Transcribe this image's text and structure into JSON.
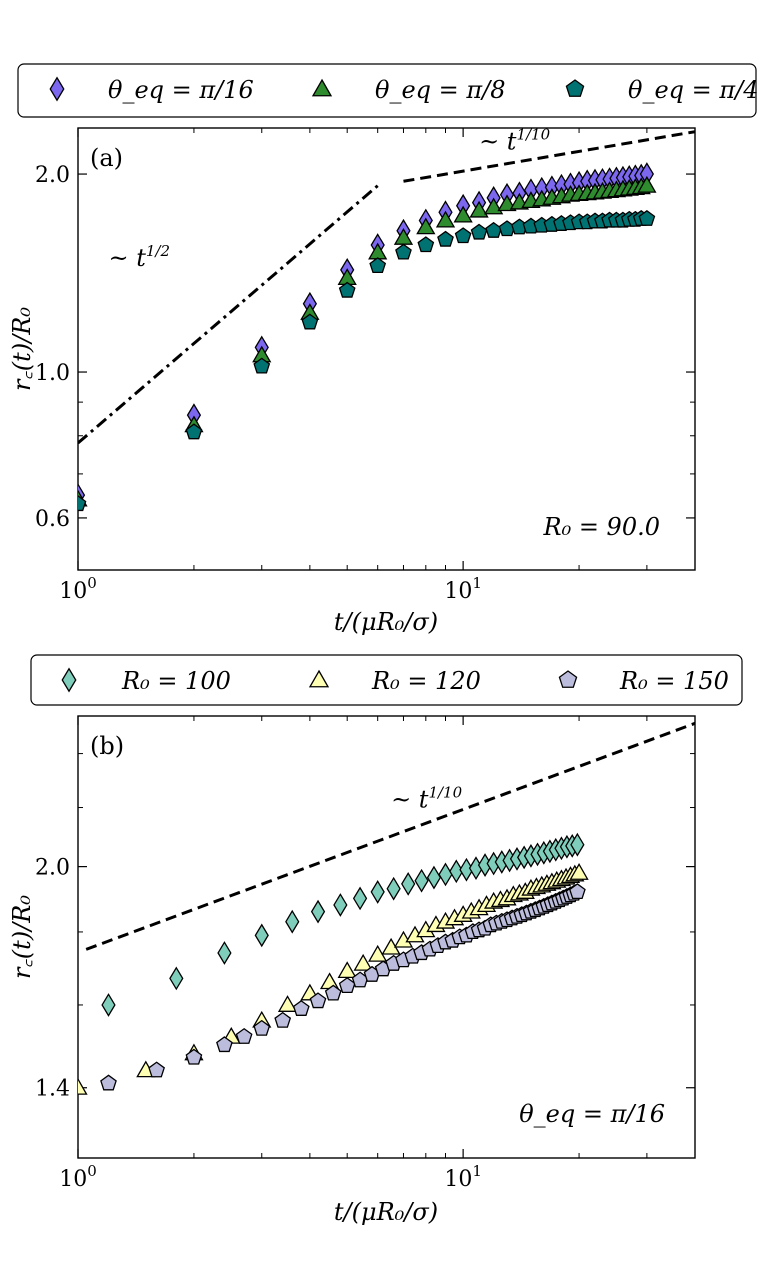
{
  "chart_data": [
    {
      "type": "scatter",
      "panel_label": "(a)",
      "xscale": "log",
      "yscale": "log",
      "xlim": [
        1,
        40
      ],
      "ylim": [
        0.5,
        2.35
      ],
      "xlabel": "t/(μR₀/σ)",
      "ylabel": "r꜀(t)/R₀",
      "x_ticks": [
        {
          "value": 1,
          "base": "10",
          "exp": "0"
        },
        {
          "value": 10,
          "base": "10",
          "exp": "1"
        }
      ],
      "y_ticks": [
        {
          "value": 0.6,
          "label": "0.6"
        },
        {
          "value": 1.0,
          "label": "1.0"
        },
        {
          "value": 2.0,
          "label": "2.0"
        }
      ],
      "y_minor_ticks": [
        0.7,
        0.8,
        0.9
      ],
      "legend": [
        {
          "series": 0,
          "text": "θ_eq = π/16"
        },
        {
          "series": 1,
          "text": "θ_eq = π/8"
        },
        {
          "series": 2,
          "text": "θ_eq = π/4"
        }
      ],
      "annotation": "R₀ = 90.0",
      "series": [
        {
          "name": "θ_eq = π/16",
          "marker": "diamond",
          "color": "#7b68ee",
          "x": [
            1,
            2,
            3,
            4,
            5,
            6,
            7,
            8,
            9,
            10,
            11,
            12,
            13,
            14,
            15,
            16,
            17,
            18,
            19,
            20,
            21,
            22,
            23,
            24,
            25,
            26,
            27,
            28,
            29,
            30
          ],
          "values": [
            0.65,
            0.86,
            1.09,
            1.27,
            1.43,
            1.56,
            1.64,
            1.7,
            1.75,
            1.79,
            1.81,
            1.84,
            1.86,
            1.87,
            1.89,
            1.9,
            1.91,
            1.92,
            1.93,
            1.94,
            1.95,
            1.955,
            1.96,
            1.965,
            1.97,
            1.975,
            1.98,
            1.985,
            1.99,
            2.0
          ]
        },
        {
          "name": "θ_eq = π/8",
          "marker": "triangle",
          "color": "#2e8b2e",
          "x": [
            1,
            2,
            3,
            4,
            5,
            6,
            7,
            8,
            9,
            10,
            11,
            12,
            13,
            14,
            15,
            16,
            17,
            18,
            19,
            20,
            21,
            22,
            23,
            24,
            25,
            26,
            27,
            28,
            29,
            30
          ],
          "values": [
            0.64,
            0.83,
            1.06,
            1.23,
            1.39,
            1.52,
            1.6,
            1.66,
            1.7,
            1.73,
            1.76,
            1.78,
            1.8,
            1.81,
            1.82,
            1.83,
            1.84,
            1.85,
            1.86,
            1.865,
            1.87,
            1.875,
            1.88,
            1.885,
            1.89,
            1.895,
            1.9,
            1.905,
            1.91,
            1.92
          ]
        },
        {
          "name": "θ_eq = π/4",
          "marker": "pentagon",
          "color": "#007272",
          "x": [
            1,
            2,
            3,
            4,
            5,
            6,
            7,
            8,
            9,
            10,
            11,
            12,
            13,
            14,
            15,
            16,
            17,
            18,
            19,
            20,
            21,
            22,
            23,
            24,
            25,
            26,
            27,
            28,
            29,
            30
          ],
          "values": [
            0.63,
            0.81,
            1.02,
            1.19,
            1.33,
            1.45,
            1.52,
            1.56,
            1.59,
            1.61,
            1.63,
            1.64,
            1.65,
            1.66,
            1.665,
            1.67,
            1.675,
            1.68,
            1.685,
            1.69,
            1.69,
            1.695,
            1.695,
            1.7,
            1.7,
            1.7,
            1.705,
            1.705,
            1.71,
            1.71
          ]
        }
      ],
      "guides": [
        {
          "style": "dash-dot",
          "x": [
            1,
            6
          ],
          "y": [
            0.78,
            1.92
          ],
          "label": "~ t^{1/2}",
          "label_base": "~ t",
          "label_exp": "1/2",
          "label_pos": [
            1.2,
            1.45
          ]
        },
        {
          "style": "dashed",
          "x": [
            7,
            40
          ],
          "y": [
            1.95,
            2.32
          ],
          "label": "~ t^{1/10}",
          "label_base": "~ t",
          "label_exp": "1/10",
          "label_pos": [
            11,
            2.18
          ]
        }
      ]
    },
    {
      "type": "scatter",
      "panel_label": "(b)",
      "xscale": "log",
      "yscale": "log",
      "xlim": [
        1,
        40
      ],
      "ylim": [
        1.25,
        2.55
      ],
      "xlabel": "t/(μR₀/σ)",
      "ylabel": "r꜀(t)/R₀",
      "x_ticks": [
        {
          "value": 1,
          "base": "10",
          "exp": "0"
        },
        {
          "value": 10,
          "base": "10",
          "exp": "1"
        }
      ],
      "y_ticks": [
        {
          "value": 1.4,
          "label": "1.4"
        },
        {
          "value": 2.0,
          "label": "2.0"
        }
      ],
      "y_minor_ticks": [
        1.6,
        1.8,
        2.2,
        2.4
      ],
      "legend": [
        {
          "series": 0,
          "text": "R₀ = 100"
        },
        {
          "series": 1,
          "text": "R₀ = 120"
        },
        {
          "series": 2,
          "text": "R₀ = 150"
        }
      ],
      "annotation": "θ_eq = π/16",
      "series": [
        {
          "name": "R₀ = 100",
          "marker": "diamond",
          "color": "#7fcdbb",
          "x": [
            1.2,
            1.8,
            2.4,
            3.0,
            3.6,
            4.2,
            4.8,
            5.4,
            6.0,
            6.6,
            7.2,
            7.8,
            8.4,
            9.0,
            9.6,
            10.2,
            10.8,
            11.4,
            12.0,
            12.6,
            13.2,
            13.8,
            14.4,
            15.0,
            15.6,
            16.2,
            16.8,
            17.4,
            18.0,
            18.6,
            19.2,
            19.8
          ],
          "values": [
            1.6,
            1.67,
            1.74,
            1.79,
            1.83,
            1.86,
            1.88,
            1.9,
            1.92,
            1.93,
            1.945,
            1.955,
            1.965,
            1.975,
            1.985,
            1.99,
            1.995,
            2.005,
            2.01,
            2.015,
            2.02,
            2.025,
            2.03,
            2.035,
            2.04,
            2.045,
            2.05,
            2.055,
            2.06,
            2.065,
            2.068,
            2.072
          ]
        },
        {
          "name": "R₀ = 120",
          "marker": "triangle",
          "color": "#ffffb3",
          "x": [
            1.0,
            1.5,
            2.0,
            2.5,
            3.0,
            3.5,
            4.0,
            4.5,
            5.0,
            5.5,
            6.0,
            6.5,
            7.0,
            7.5,
            8.0,
            8.5,
            9.0,
            9.5,
            10.0,
            10.5,
            11.0,
            11.5,
            12.0,
            12.5,
            13.0,
            13.5,
            14.0,
            14.5,
            15.0,
            15.5,
            16.0,
            16.5,
            17.0,
            17.5,
            18.0,
            18.5,
            19.0,
            19.5,
            20.0
          ],
          "values": [
            1.4,
            1.44,
            1.48,
            1.52,
            1.56,
            1.6,
            1.63,
            1.66,
            1.69,
            1.71,
            1.735,
            1.755,
            1.775,
            1.79,
            1.805,
            1.82,
            1.83,
            1.84,
            1.85,
            1.86,
            1.87,
            1.88,
            1.89,
            1.895,
            1.9,
            1.91,
            1.915,
            1.92,
            1.93,
            1.935,
            1.94,
            1.945,
            1.95,
            1.955,
            1.96,
            1.965,
            1.97,
            1.975,
            1.98
          ]
        },
        {
          "name": "R₀ = 150",
          "marker": "pentagon",
          "color": "#bcbddc",
          "x": [
            1.2,
            1.6,
            2.0,
            2.4,
            2.7,
            3.0,
            3.4,
            3.8,
            4.2,
            4.6,
            5.0,
            5.4,
            5.8,
            6.2,
            6.6,
            7.0,
            7.4,
            7.8,
            8.2,
            8.6,
            9.0,
            9.4,
            9.8,
            10.2,
            10.6,
            11.0,
            11.4,
            11.8,
            12.2,
            12.6,
            13.0,
            13.4,
            13.8,
            14.2,
            14.6,
            15.0,
            15.4,
            15.8,
            16.2,
            16.6,
            17.0,
            17.4,
            17.8,
            18.2,
            18.6,
            19.0,
            19.4,
            19.8
          ],
          "values": [
            1.41,
            1.44,
            1.47,
            1.5,
            1.52,
            1.54,
            1.56,
            1.59,
            1.61,
            1.63,
            1.65,
            1.665,
            1.68,
            1.695,
            1.71,
            1.72,
            1.73,
            1.74,
            1.75,
            1.76,
            1.77,
            1.775,
            1.785,
            1.79,
            1.8,
            1.805,
            1.81,
            1.82,
            1.825,
            1.83,
            1.835,
            1.84,
            1.845,
            1.85,
            1.855,
            1.86,
            1.865,
            1.87,
            1.875,
            1.88,
            1.885,
            1.89,
            1.895,
            1.9,
            1.905,
            1.91,
            1.915,
            1.92
          ]
        }
      ],
      "guides": [
        {
          "style": "dashed",
          "x": [
            1.05,
            40
          ],
          "y": [
            1.75,
            2.52
          ],
          "label": "~ t^{1/10}",
          "label_base": "~ t",
          "label_exp": "1/10",
          "label_pos": [
            6.5,
            2.2
          ]
        }
      ]
    }
  ]
}
